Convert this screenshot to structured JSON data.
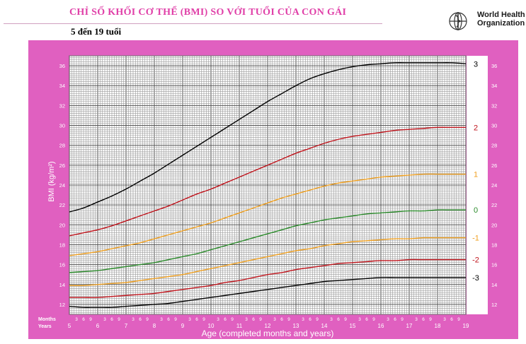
{
  "header": {
    "title": "CHỈ SỐ KHỐI CƠ THỂ (BMI) SO VỚI TUỔI CỦA CON GÁI",
    "subtitle": "5 đến 19 tuổi",
    "org_line1": "World Health",
    "org_line2": "Organization"
  },
  "chart_data": {
    "type": "line",
    "ylabel": "BMI (kg/m²)",
    "xlabel": "Age (completed months and years)",
    "row_label_months": "Months",
    "row_label_years": "Years",
    "month_ticks": [
      "3",
      "6",
      "9"
    ],
    "xlim": [
      5,
      19
    ],
    "ylim": [
      11,
      37
    ],
    "x_tick_years": [
      5,
      6,
      7,
      8,
      9,
      10,
      11,
      12,
      13,
      14,
      15,
      16,
      17,
      18,
      19
    ],
    "y_ticks": [
      12,
      14,
      16,
      18,
      20,
      22,
      24,
      26,
      28,
      30,
      32,
      34,
      36
    ],
    "grid": true,
    "background_color": "#e060c0",
    "x": [
      5,
      5.5,
      6,
      6.5,
      7,
      7.5,
      8,
      8.5,
      9,
      9.5,
      10,
      10.5,
      11,
      11.5,
      12,
      12.5,
      13,
      13.5,
      14,
      14.5,
      15,
      15.5,
      16,
      16.5,
      17,
      17.5,
      18,
      18.5,
      19
    ],
    "series": [
      {
        "name": "3",
        "color": "#000000",
        "values": [
          21.3,
          21.7,
          22.3,
          22.9,
          23.6,
          24.4,
          25.2,
          26.1,
          27.0,
          27.9,
          28.8,
          29.7,
          30.6,
          31.5,
          32.4,
          33.2,
          34.0,
          34.7,
          35.2,
          35.6,
          35.9,
          36.1,
          36.2,
          36.3,
          36.3,
          36.3,
          36.3,
          36.3,
          36.2
        ]
      },
      {
        "name": "2",
        "color": "#c0141c",
        "values": [
          18.9,
          19.2,
          19.5,
          19.9,
          20.4,
          20.9,
          21.4,
          21.9,
          22.5,
          23.1,
          23.6,
          24.2,
          24.8,
          25.4,
          26.0,
          26.6,
          27.2,
          27.7,
          28.2,
          28.6,
          28.9,
          29.1,
          29.3,
          29.5,
          29.6,
          29.7,
          29.8,
          29.8,
          29.8
        ]
      },
      {
        "name": "1",
        "color": "#f0a020",
        "values": [
          16.9,
          17.1,
          17.3,
          17.6,
          17.9,
          18.2,
          18.6,
          19.0,
          19.4,
          19.8,
          20.2,
          20.7,
          21.2,
          21.7,
          22.2,
          22.7,
          23.1,
          23.5,
          23.9,
          24.2,
          24.4,
          24.6,
          24.8,
          24.9,
          25.0,
          25.1,
          25.1,
          25.1,
          25.1
        ]
      },
      {
        "name": "0",
        "color": "#2a8a2a",
        "values": [
          15.2,
          15.3,
          15.4,
          15.6,
          15.8,
          16.0,
          16.2,
          16.5,
          16.8,
          17.1,
          17.5,
          17.9,
          18.3,
          18.7,
          19.1,
          19.5,
          19.9,
          20.2,
          20.5,
          20.7,
          20.9,
          21.1,
          21.2,
          21.3,
          21.4,
          21.4,
          21.5,
          21.5,
          21.5
        ]
      },
      {
        "name": "-1",
        "color": "#f0a020",
        "values": [
          13.9,
          13.9,
          14.0,
          14.1,
          14.2,
          14.4,
          14.6,
          14.8,
          15.0,
          15.3,
          15.6,
          15.9,
          16.2,
          16.5,
          16.8,
          17.1,
          17.4,
          17.6,
          17.9,
          18.1,
          18.3,
          18.4,
          18.5,
          18.6,
          18.6,
          18.7,
          18.7,
          18.7,
          18.7
        ]
      },
      {
        "name": "-2",
        "color": "#c0141c",
        "values": [
          12.7,
          12.7,
          12.7,
          12.8,
          12.9,
          13.0,
          13.1,
          13.3,
          13.5,
          13.7,
          13.9,
          14.2,
          14.4,
          14.7,
          15.0,
          15.2,
          15.5,
          15.7,
          15.9,
          16.1,
          16.2,
          16.3,
          16.4,
          16.4,
          16.5,
          16.5,
          16.5,
          16.5,
          16.5
        ]
      },
      {
        "name": "-3",
        "color": "#000000",
        "values": [
          11.8,
          11.7,
          11.7,
          11.7,
          11.8,
          11.9,
          12.0,
          12.1,
          12.3,
          12.5,
          12.7,
          12.9,
          13.1,
          13.3,
          13.5,
          13.7,
          13.9,
          14.1,
          14.3,
          14.4,
          14.5,
          14.6,
          14.7,
          14.7,
          14.7,
          14.7,
          14.7,
          14.7,
          14.7
        ]
      }
    ]
  }
}
